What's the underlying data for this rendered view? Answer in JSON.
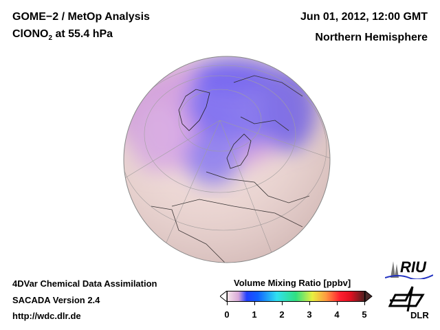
{
  "header": {
    "title_line1": "GOME−2 / MetOp Analysis",
    "species": "ClONO",
    "species_sub": "2",
    "level": " at 55.4 hPa",
    "date": "Jun 01, 2012, 12:00 GMT",
    "region": "Northern Hemisphere"
  },
  "footer": {
    "line1": "4DVar Chemical Data Assimilation",
    "line2": "SACADA Version 2.4",
    "line3": "http://wdc.dlr.de"
  },
  "colorbar": {
    "title": "Volume Mixing Ratio [ppbv]",
    "ticks": [
      "0",
      "1",
      "2",
      "3",
      "4",
      "5"
    ],
    "min": 0,
    "max": 5
  },
  "logos": {
    "riu": "RIU",
    "dlr": "DLR"
  }
}
